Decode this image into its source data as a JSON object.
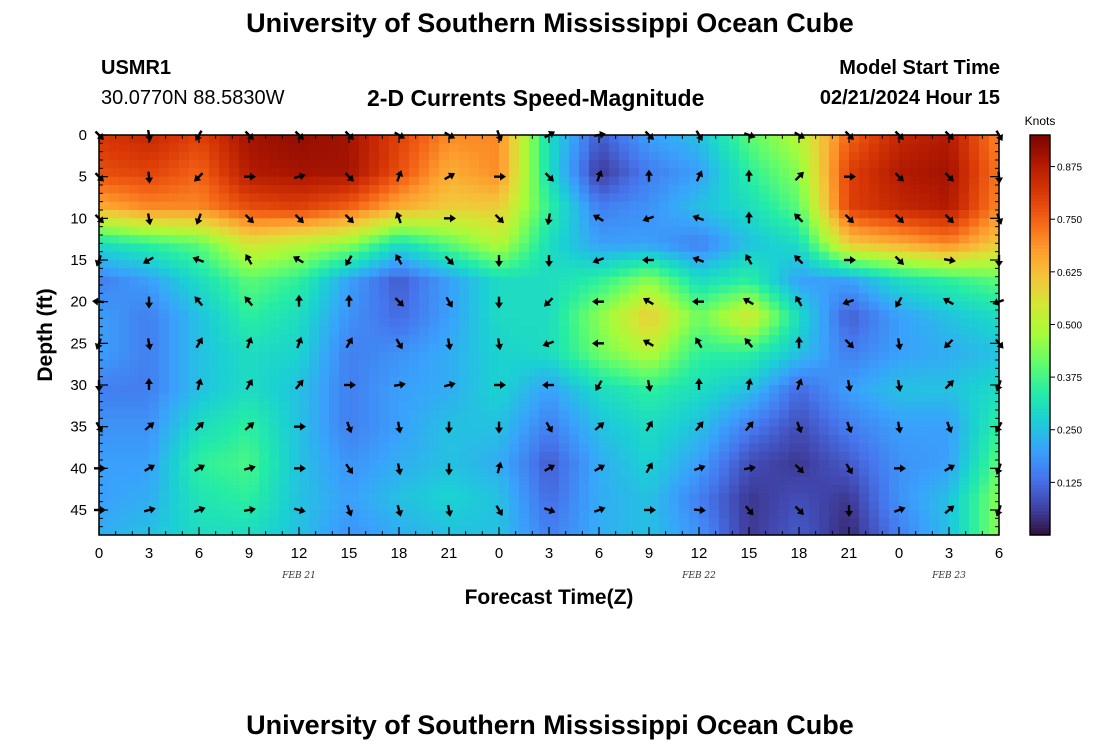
{
  "page": {
    "title_top": "University of Southern Mississippi Ocean Cube",
    "title_bottom": "University of Southern Mississippi Ocean Cube",
    "station": "USMR1",
    "coords": "30.0770N  88.5830W",
    "subtitle": "2-D Currents Speed-Magnitude",
    "model_label": "Model Start Time",
    "model_time": "02/21/2024 Hour 15"
  },
  "chart_data": {
    "type": "heatmap",
    "title": "2-D Currents Speed-Magnitude",
    "xlabel": "Forecast Time(Z)",
    "ylabel": "Depth (ft)",
    "x_ticks": [
      "0",
      "3",
      "6",
      "9",
      "12",
      "15",
      "18",
      "21",
      "0",
      "3",
      "6",
      "9",
      "12",
      "15",
      "18",
      "21",
      "0",
      "3",
      "6"
    ],
    "x_range_hours": [
      0,
      54
    ],
    "date_labels": [
      {
        "label": "FEB 21",
        "hour": 12
      },
      {
        "label": "FEB 22",
        "hour": 36
      },
      {
        "label": "FEB 23",
        "hour": 51
      }
    ],
    "y_ticks": [
      0,
      5,
      10,
      15,
      20,
      25,
      30,
      35,
      40,
      45
    ],
    "y_range_ft": [
      0,
      48
    ],
    "colorbar": {
      "title": "Knots",
      "ticks": [
        "0.875",
        "0.750",
        "0.625",
        "0.500",
        "0.375",
        "0.250",
        "0.125"
      ],
      "tick_values": [
        0.875,
        0.75,
        0.625,
        0.5,
        0.375,
        0.25,
        0.125
      ],
      "range": [
        0,
        0.95
      ],
      "colors": [
        "#30123b",
        "#4145ab",
        "#4675ed",
        "#39a2fc",
        "#1bcfd4",
        "#24eca6",
        "#61fc6c",
        "#a4fc3b",
        "#d1e834",
        "#f3c63a",
        "#fe9b2d",
        "#f36315",
        "#d93806",
        "#b11901",
        "#7a0403"
      ]
    },
    "speed_grid": [
      [
        0.82,
        0.85,
        0.8,
        0.9,
        0.92,
        0.9,
        0.8,
        0.7,
        0.7,
        0.3,
        0.1,
        0.2,
        0.25,
        0.4,
        0.5,
        0.75,
        0.85,
        0.88,
        0.7
      ],
      [
        0.78,
        0.8,
        0.75,
        0.88,
        0.9,
        0.9,
        0.78,
        0.65,
        0.7,
        0.3,
        0.05,
        0.15,
        0.2,
        0.35,
        0.45,
        0.8,
        0.88,
        0.9,
        0.72
      ],
      [
        0.65,
        0.7,
        0.7,
        0.78,
        0.8,
        0.75,
        0.65,
        0.6,
        0.6,
        0.35,
        0.15,
        0.18,
        0.25,
        0.3,
        0.4,
        0.8,
        0.85,
        0.88,
        0.7
      ],
      [
        0.3,
        0.35,
        0.4,
        0.55,
        0.5,
        0.45,
        0.3,
        0.4,
        0.5,
        0.3,
        0.2,
        0.2,
        0.15,
        0.25,
        0.3,
        0.6,
        0.65,
        0.7,
        0.6
      ],
      [
        0.15,
        0.2,
        0.3,
        0.4,
        0.35,
        0.2,
        0.1,
        0.2,
        0.3,
        0.3,
        0.35,
        0.45,
        0.3,
        0.35,
        0.2,
        0.2,
        0.3,
        0.35,
        0.4
      ],
      [
        0.2,
        0.15,
        0.25,
        0.35,
        0.3,
        0.18,
        0.12,
        0.2,
        0.3,
        0.3,
        0.45,
        0.6,
        0.42,
        0.55,
        0.3,
        0.1,
        0.2,
        0.25,
        0.3
      ],
      [
        0.2,
        0.15,
        0.25,
        0.3,
        0.28,
        0.15,
        0.18,
        0.22,
        0.28,
        0.3,
        0.42,
        0.5,
        0.35,
        0.35,
        0.25,
        0.15,
        0.2,
        0.22,
        0.25
      ],
      [
        0.15,
        0.15,
        0.25,
        0.3,
        0.25,
        0.15,
        0.2,
        0.22,
        0.28,
        0.2,
        0.3,
        0.35,
        0.3,
        0.25,
        0.12,
        0.2,
        0.25,
        0.25,
        0.3
      ],
      [
        0.18,
        0.18,
        0.3,
        0.35,
        0.25,
        0.15,
        0.2,
        0.25,
        0.25,
        0.15,
        0.25,
        0.3,
        0.25,
        0.15,
        0.08,
        0.15,
        0.2,
        0.2,
        0.35
      ],
      [
        0.2,
        0.2,
        0.35,
        0.38,
        0.25,
        0.18,
        0.22,
        0.25,
        0.22,
        0.1,
        0.22,
        0.28,
        0.2,
        0.08,
        0.05,
        0.1,
        0.18,
        0.2,
        0.4
      ],
      [
        0.2,
        0.22,
        0.32,
        0.35,
        0.25,
        0.2,
        0.25,
        0.28,
        0.25,
        0.12,
        0.22,
        0.25,
        0.15,
        0.05,
        0.08,
        0.05,
        0.18,
        0.25,
        0.45
      ],
      [
        0.22,
        0.25,
        0.3,
        0.3,
        0.25,
        0.18,
        0.22,
        0.25,
        0.25,
        0.15,
        0.22,
        0.25,
        0.18,
        0.05,
        0.1,
        0.03,
        0.15,
        0.25,
        0.45
      ]
    ],
    "arrow_rows_depth_ft": [
      0,
      5,
      10,
      15,
      20,
      25,
      30,
      35,
      40,
      45
    ],
    "arrow_directions_deg": [
      [
        135,
        170,
        210,
        135,
        135,
        135,
        120,
        120,
        160,
        60,
        80,
        135,
        150,
        110,
        120,
        135,
        135,
        135,
        150
      ],
      [
        135,
        175,
        225,
        90,
        75,
        135,
        20,
        60,
        90,
        135,
        20,
        0,
        25,
        0,
        45,
        90,
        135,
        135,
        175
      ],
      [
        135,
        170,
        200,
        135,
        135,
        135,
        340,
        90,
        135,
        190,
        300,
        250,
        290,
        0,
        315,
        135,
        135,
        135,
        160
      ],
      [
        200,
        240,
        290,
        330,
        300,
        210,
        330,
        135,
        180,
        180,
        250,
        270,
        290,
        330,
        315,
        90,
        135,
        100,
        180
      ],
      [
        275,
        180,
        320,
        320,
        0,
        0,
        135,
        150,
        180,
        225,
        270,
        300,
        270,
        300,
        330,
        250,
        210,
        300,
        250
      ],
      [
        200,
        170,
        30,
        20,
        20,
        30,
        150,
        170,
        170,
        250,
        270,
        300,
        330,
        320,
        0,
        135,
        170,
        225,
        140
      ],
      [
        180,
        0,
        15,
        30,
        40,
        90,
        80,
        75,
        90,
        270,
        210,
        170,
        0,
        10,
        20,
        170,
        170,
        45,
        200
      ],
      [
        150,
        50,
        45,
        50,
        90,
        160,
        170,
        180,
        180,
        150,
        50,
        30,
        40,
        40,
        160,
        160,
        170,
        160,
        210
      ],
      [
        90,
        60,
        60,
        75,
        90,
        145,
        170,
        180,
        15,
        60,
        60,
        30,
        70,
        80,
        135,
        150,
        90,
        60,
        200
      ],
      [
        90,
        75,
        70,
        80,
        105,
        160,
        165,
        170,
        150,
        110,
        70,
        90,
        95,
        140,
        135,
        180,
        70,
        50,
        200
      ]
    ]
  }
}
